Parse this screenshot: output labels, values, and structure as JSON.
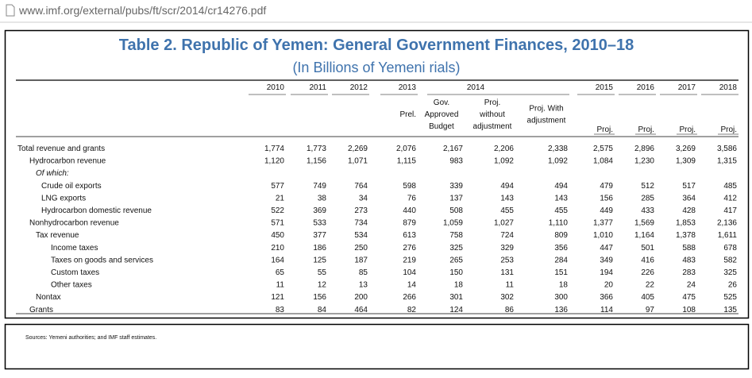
{
  "browser": {
    "url": "www.imf.org/external/pubs/ft/scr/2014/cr14276.pdf"
  },
  "table": {
    "title": "Table 2. Republic of Yemen: General Government Finances, 2010–18",
    "subtitle": "(In Billions of Yemeni rials)",
    "groups": [
      {
        "year": "2010"
      },
      {
        "year": "2011"
      },
      {
        "year": "2012"
      },
      {
        "year": "2013",
        "subs": [
          {
            "lines": [
              "Prel."
            ]
          }
        ]
      },
      {
        "year": "2014",
        "subs": [
          {
            "lines": [
              "Gov.",
              "Approved",
              "Budget"
            ]
          },
          {
            "lines": [
              "Proj.",
              "without",
              "adjustment"
            ]
          },
          {
            "lines": [
              "Proj. With",
              "adjustment"
            ]
          }
        ]
      },
      {
        "year": "2015",
        "subs": [
          {
            "lines": [
              "Proj."
            ]
          }
        ]
      },
      {
        "year": "2016",
        "subs": [
          {
            "lines": [
              "Proj."
            ]
          }
        ]
      },
      {
        "year": "2017",
        "subs": [
          {
            "lines": [
              "Proj."
            ]
          }
        ]
      },
      {
        "year": "2018",
        "subs": [
          {
            "lines": [
              "Proj."
            ]
          }
        ]
      }
    ],
    "rows": [
      {
        "label": "Total revenue and grants",
        "cells": [
          "1,774",
          "1,773",
          "2,269",
          "2,076",
          "2,167",
          "2,206",
          "2,338",
          "2,575",
          "2,896",
          "3,269",
          "3,586"
        ]
      },
      {
        "label": "Hydrocarbon revenue",
        "cells": [
          "1,120",
          "1,156",
          "1,071",
          "1,115",
          "983",
          "1,092",
          "1,092",
          "1,084",
          "1,230",
          "1,309",
          "1,315"
        ]
      },
      {
        "label": "Of which:"
      },
      {
        "label": "Crude oil exports",
        "cells": [
          "577",
          "749",
          "764",
          "598",
          "339",
          "494",
          "494",
          "479",
          "512",
          "517",
          "485"
        ]
      },
      {
        "label": "LNG exports",
        "cells": [
          "21",
          "38",
          "34",
          "76",
          "137",
          "143",
          "143",
          "156",
          "285",
          "364",
          "412"
        ]
      },
      {
        "label": "Hydrocarbon domestic revenue",
        "cells": [
          "522",
          "369",
          "273",
          "440",
          "508",
          "455",
          "455",
          "449",
          "433",
          "428",
          "417"
        ]
      },
      {
        "label": "Nonhydrocarbon revenue",
        "cells": [
          "571",
          "533",
          "734",
          "879",
          "1,059",
          "1,027",
          "1,110",
          "1,377",
          "1,569",
          "1,853",
          "2,136"
        ]
      },
      {
        "label": "Tax revenue",
        "cells": [
          "450",
          "377",
          "534",
          "613",
          "758",
          "724",
          "809",
          "1,010",
          "1,164",
          "1,378",
          "1,611"
        ]
      },
      {
        "label": "Income taxes",
        "cells": [
          "210",
          "186",
          "250",
          "276",
          "325",
          "329",
          "356",
          "447",
          "501",
          "588",
          "678"
        ]
      },
      {
        "label": "Taxes on goods and services",
        "cells": [
          "164",
          "125",
          "187",
          "219",
          "265",
          "253",
          "284",
          "349",
          "416",
          "483",
          "582"
        ]
      },
      {
        "label": "Custom taxes",
        "cells": [
          "65",
          "55",
          "85",
          "104",
          "150",
          "131",
          "151",
          "194",
          "226",
          "283",
          "325"
        ]
      },
      {
        "label": "Other taxes",
        "cells": [
          "11",
          "12",
          "13",
          "14",
          "18",
          "11",
          "18",
          "20",
          "22",
          "24",
          "26"
        ]
      },
      {
        "label": "Nontax",
        "cells": [
          "121",
          "156",
          "200",
          "266",
          "301",
          "302",
          "300",
          "366",
          "405",
          "475",
          "525"
        ]
      },
      {
        "label": "Grants",
        "cells": [
          "83",
          "84",
          "464",
          "82",
          "124",
          "86",
          "136",
          "114",
          "97",
          "108",
          "135"
        ]
      }
    ],
    "source": "Sources: Yemeni authorities; and IMF staff estimates."
  }
}
